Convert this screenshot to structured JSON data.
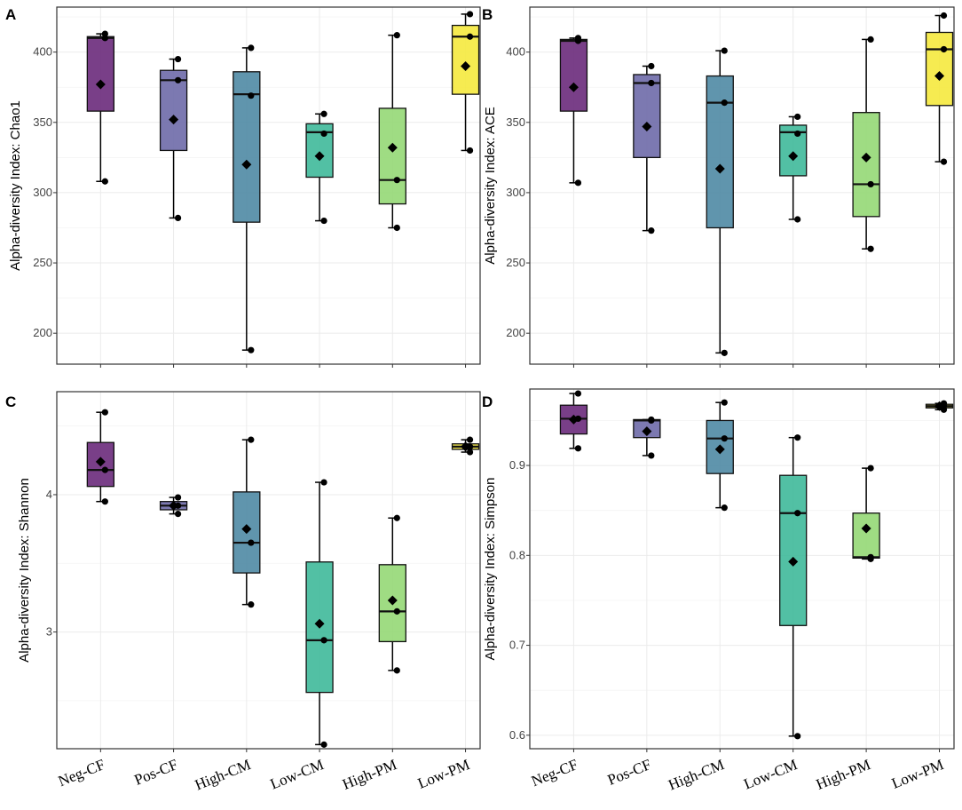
{
  "colors": {
    "Neg-CF": "#6a2a7b",
    "Pos-CF": "#6e6aa9",
    "High-CM": "#4f8aa4",
    "Low-CM": "#3fb99a",
    "High-PM": "#95d876",
    "Low-PM": "#f5e93e",
    "point": "#000000",
    "grid": "#ebebeb"
  },
  "chart_data": [
    {
      "type": "box",
      "panel": "A",
      "ylabel": "Alpha-diversity Index: Chao1",
      "categories": [
        "Neg-CF",
        "Pos-CF",
        "High-CM",
        "Low-CM",
        "High-PM",
        "Low-PM"
      ],
      "ylim": [
        178,
        432
      ],
      "yticks": [
        200,
        250,
        300,
        350,
        400
      ],
      "yticklabels": [
        "200",
        "250",
        "300",
        "350",
        "400"
      ],
      "show_xticklabels": false,
      "boxes": [
        {
          "q1": 358,
          "median": 410,
          "q3": 411,
          "whisker_low": 308,
          "whisker_high": 413,
          "mean": 377,
          "points": [
            413,
            410,
            308
          ]
        },
        {
          "q1": 330,
          "median": 380,
          "q3": 387,
          "whisker_low": 282,
          "whisker_high": 395,
          "mean": 352,
          "points": [
            395,
            380,
            282
          ]
        },
        {
          "q1": 279,
          "median": 370,
          "q3": 386,
          "whisker_low": 188,
          "whisker_high": 403,
          "mean": 320,
          "points": [
            403,
            369,
            188
          ]
        },
        {
          "q1": 311,
          "median": 343,
          "q3": 349,
          "whisker_low": 280,
          "whisker_high": 356,
          "mean": 326,
          "points": [
            356,
            342,
            280
          ]
        },
        {
          "q1": 292,
          "median": 309,
          "q3": 360,
          "whisker_low": 275,
          "whisker_high": 412,
          "mean": 332,
          "points": [
            412,
            309,
            275
          ]
        },
        {
          "q1": 370,
          "median": 411,
          "q3": 419,
          "whisker_low": 330,
          "whisker_high": 427,
          "mean": 390,
          "points": [
            427,
            411,
            330
          ]
        }
      ]
    },
    {
      "type": "box",
      "panel": "B",
      "ylabel": "Alpha-diversity Index: ACE",
      "categories": [
        "Neg-CF",
        "Pos-CF",
        "High-CM",
        "Low-CM",
        "High-PM",
        "Low-PM"
      ],
      "ylim": [
        178,
        432
      ],
      "yticks": [
        200,
        250,
        300,
        350,
        400
      ],
      "yticklabels": [
        "200",
        "250",
        "300",
        "350",
        "400"
      ],
      "show_xticklabels": false,
      "boxes": [
        {
          "q1": 358,
          "median": 408,
          "q3": 409,
          "whisker_low": 307,
          "whisker_high": 410,
          "mean": 375,
          "points": [
            410,
            408,
            307
          ]
        },
        {
          "q1": 325,
          "median": 378,
          "q3": 384,
          "whisker_low": 273,
          "whisker_high": 390,
          "mean": 347,
          "points": [
            390,
            378,
            273
          ]
        },
        {
          "q1": 275,
          "median": 364,
          "q3": 383,
          "whisker_low": 186,
          "whisker_high": 401,
          "mean": 317,
          "points": [
            401,
            364,
            186
          ]
        },
        {
          "q1": 312,
          "median": 343,
          "q3": 348,
          "whisker_low": 281,
          "whisker_high": 354,
          "mean": 326,
          "points": [
            354,
            342,
            281
          ]
        },
        {
          "q1": 283,
          "median": 306,
          "q3": 357,
          "whisker_low": 260,
          "whisker_high": 409,
          "mean": 325,
          "points": [
            409,
            306,
            260
          ]
        },
        {
          "q1": 362,
          "median": 402,
          "q3": 414,
          "whisker_low": 322,
          "whisker_high": 426,
          "mean": 383,
          "points": [
            426,
            402,
            322
          ]
        }
      ]
    },
    {
      "type": "box",
      "panel": "C",
      "ylabel": "Alpha-diversity Index: Shannon",
      "categories": [
        "Neg-CF",
        "Pos-CF",
        "High-CM",
        "Low-CM",
        "High-PM",
        "Low-PM"
      ],
      "ylim": [
        2.15,
        4.75
      ],
      "yticks": [
        3,
        4
      ],
      "yticklabels": [
        "3",
        "4"
      ],
      "show_xticklabels": true,
      "boxes": [
        {
          "q1": 4.06,
          "median": 4.18,
          "q3": 4.38,
          "whisker_low": 3.95,
          "whisker_high": 4.6,
          "mean": 4.24,
          "points": [
            4.6,
            4.18,
            3.95
          ]
        },
        {
          "q1": 3.89,
          "median": 3.92,
          "q3": 3.95,
          "whisker_low": 3.86,
          "whisker_high": 3.98,
          "mean": 3.92,
          "points": [
            3.98,
            3.92,
            3.86
          ]
        },
        {
          "q1": 3.43,
          "median": 3.65,
          "q3": 4.02,
          "whisker_low": 3.2,
          "whisker_high": 4.4,
          "mean": 3.75,
          "points": [
            4.4,
            3.65,
            3.2
          ]
        },
        {
          "q1": 2.56,
          "median": 2.94,
          "q3": 3.51,
          "whisker_low": 2.18,
          "whisker_high": 4.09,
          "mean": 3.06,
          "points": [
            4.09,
            2.94,
            2.18
          ]
        },
        {
          "q1": 2.93,
          "median": 3.15,
          "q3": 3.49,
          "whisker_low": 2.72,
          "whisker_high": 3.83,
          "mean": 3.23,
          "points": [
            3.83,
            3.15,
            2.72
          ]
        },
        {
          "q1": 4.33,
          "median": 4.35,
          "q3": 4.37,
          "whisker_low": 4.31,
          "whisker_high": 4.4,
          "mean": 4.35,
          "points": [
            4.4,
            4.35,
            4.31
          ]
        }
      ]
    },
    {
      "type": "box",
      "panel": "D",
      "ylabel": "Alpha-diversity Index: Simpson",
      "categories": [
        "Neg-CF",
        "Pos-CF",
        "High-CM",
        "Low-CM",
        "High-PM",
        "Low-PM"
      ],
      "ylim": [
        0.585,
        0.985
      ],
      "yticks": [
        0.6,
        0.7,
        0.8,
        0.9
      ],
      "yticklabels": [
        "0.6",
        "0.7",
        "0.8",
        "0.9"
      ],
      "show_xticklabels": true,
      "boxes": [
        {
          "q1": 0.935,
          "median": 0.952,
          "q3": 0.967,
          "whisker_low": 0.919,
          "whisker_high": 0.98,
          "mean": 0.951,
          "points": [
            0.98,
            0.952,
            0.919
          ]
        },
        {
          "q1": 0.931,
          "median": 0.95,
          "q3": 0.951,
          "whisker_low": 0.911,
          "whisker_high": 0.951,
          "mean": 0.938,
          "points": [
            0.951,
            0.95,
            0.911
          ]
        },
        {
          "q1": 0.891,
          "median": 0.93,
          "q3": 0.95,
          "whisker_low": 0.853,
          "whisker_high": 0.97,
          "mean": 0.918,
          "points": [
            0.97,
            0.93,
            0.853
          ]
        },
        {
          "q1": 0.722,
          "median": 0.847,
          "q3": 0.889,
          "whisker_low": 0.599,
          "whisker_high": 0.931,
          "mean": 0.793,
          "points": [
            0.931,
            0.847,
            0.599
          ]
        },
        {
          "q1": 0.797,
          "median": 0.798,
          "q3": 0.847,
          "whisker_low": 0.796,
          "whisker_high": 0.897,
          "mean": 0.83,
          "points": [
            0.897,
            0.798,
            0.796
          ]
        },
        {
          "q1": 0.964,
          "median": 0.966,
          "q3": 0.968,
          "whisker_low": 0.962,
          "whisker_high": 0.969,
          "mean": 0.966,
          "points": [
            0.969,
            0.966,
            0.962
          ]
        }
      ]
    }
  ]
}
